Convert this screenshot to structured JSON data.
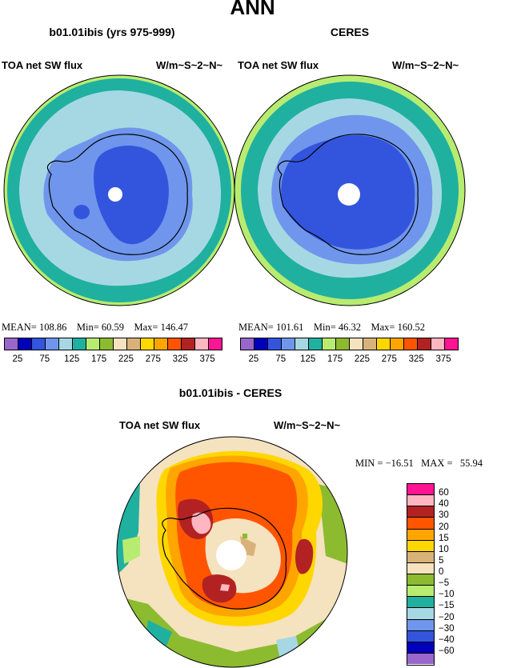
{
  "figure_title": "ANN",
  "panels": [
    {
      "title": "b01.01ibis (yrs 975-999)",
      "left_label": "TOA net SW flux",
      "right_label": "W/m~S~2~N~",
      "mean_label": "MEAN=",
      "mean": "108.86",
      "min_label": "Min=",
      "min": "60.59",
      "max_label": "Max=",
      "max": "146.47"
    },
    {
      "title": "CERES",
      "left_label": "TOA net SW flux",
      "right_label": "W/m~S~2~N~",
      "mean_label": "MEAN=",
      "mean": "101.61",
      "min_label": "Min=",
      "min": "46.32",
      "max_label": "Max=",
      "max": "160.52"
    }
  ],
  "diff_panel": {
    "title": "b01.01ibis - CERES",
    "left_label": "TOA net SW flux",
    "right_label": "W/m~S~2~N~",
    "min_label": "MIN =",
    "min": "−16.51",
    "max_label": "MAX =",
    "max": "55.94"
  },
  "colorbar_main": {
    "colors": [
      "#9966cc",
      "#0000bb",
      "#3355dd",
      "#6f96ec",
      "#a6d8e3",
      "#20b0a0",
      "#b8ec70",
      "#8cbb30",
      "#f5e2bf",
      "#d9b27a",
      "#ffd700",
      "#ffa500",
      "#ff5500",
      "#b22222",
      "#ffb6c1",
      "#ff1493"
    ],
    "tick_labels": [
      "25",
      "75",
      "125",
      "175",
      "225",
      "275",
      "325",
      "375"
    ]
  },
  "colorbar_diff": {
    "colors": [
      "#9966cc",
      "#0000bb",
      "#3355dd",
      "#6f96ec",
      "#a6d8e3",
      "#20b0a0",
      "#b8ec70",
      "#8cbb30",
      "#f5e2bf",
      "#d9b27a",
      "#ffd700",
      "#ffa500",
      "#ff5500",
      "#b22222",
      "#ffb6c1",
      "#ff1493"
    ],
    "tick_labels": [
      "−60",
      "−40",
      "−30",
      "−20",
      "−15",
      "−10",
      "−5",
      "0",
      "5",
      "10",
      "15",
      "20",
      "30",
      "40",
      "60"
    ]
  }
}
